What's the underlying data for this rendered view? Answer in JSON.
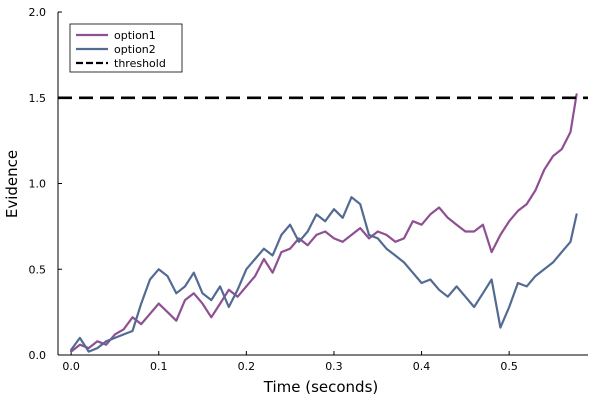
{
  "chart_data": {
    "type": "line",
    "xlabel": "Time (seconds)",
    "ylabel": "Evidence",
    "xlim": [
      -0.015,
      0.59
    ],
    "ylim": [
      0,
      2.0
    ],
    "xticks": [
      0.0,
      0.1,
      0.2,
      0.3,
      0.4,
      0.5
    ],
    "xtick_labels": [
      "0.0",
      "0.1",
      "0.2",
      "0.3",
      "0.4",
      "0.5"
    ],
    "yticks": [
      0.0,
      0.5,
      1.0,
      1.5,
      2.0
    ],
    "ytick_labels": [
      "0.0",
      "0.5",
      "1.0",
      "1.5",
      "2.0"
    ],
    "grid": false,
    "legend_position": "top-left",
    "series": [
      {
        "name": "option1",
        "color": "#8e5093",
        "x": [
          0.0,
          0.01,
          0.02,
          0.03,
          0.04,
          0.05,
          0.06,
          0.07,
          0.08,
          0.09,
          0.1,
          0.11,
          0.12,
          0.13,
          0.14,
          0.15,
          0.16,
          0.17,
          0.18,
          0.19,
          0.2,
          0.21,
          0.22,
          0.23,
          0.24,
          0.25,
          0.26,
          0.27,
          0.28,
          0.29,
          0.3,
          0.31,
          0.32,
          0.33,
          0.34,
          0.35,
          0.36,
          0.37,
          0.38,
          0.39,
          0.4,
          0.41,
          0.42,
          0.43,
          0.44,
          0.45,
          0.46,
          0.47,
          0.48,
          0.49,
          0.5,
          0.51,
          0.52,
          0.53,
          0.54,
          0.55,
          0.56,
          0.57,
          0.577
        ],
        "y": [
          0.02,
          0.06,
          0.04,
          0.08,
          0.06,
          0.12,
          0.15,
          0.22,
          0.18,
          0.24,
          0.3,
          0.25,
          0.2,
          0.32,
          0.36,
          0.3,
          0.22,
          0.3,
          0.38,
          0.34,
          0.4,
          0.46,
          0.56,
          0.48,
          0.6,
          0.62,
          0.68,
          0.64,
          0.7,
          0.72,
          0.68,
          0.66,
          0.7,
          0.74,
          0.68,
          0.72,
          0.7,
          0.66,
          0.68,
          0.78,
          0.76,
          0.82,
          0.86,
          0.8,
          0.76,
          0.72,
          0.72,
          0.76,
          0.6,
          0.7,
          0.78,
          0.84,
          0.88,
          0.96,
          1.08,
          1.16,
          1.2,
          1.3,
          1.52
        ]
      },
      {
        "name": "option2",
        "color": "#536b93",
        "x": [
          0.0,
          0.01,
          0.02,
          0.03,
          0.04,
          0.05,
          0.06,
          0.07,
          0.08,
          0.09,
          0.1,
          0.11,
          0.12,
          0.13,
          0.14,
          0.15,
          0.16,
          0.17,
          0.18,
          0.19,
          0.2,
          0.21,
          0.22,
          0.23,
          0.24,
          0.25,
          0.26,
          0.27,
          0.28,
          0.29,
          0.3,
          0.31,
          0.32,
          0.33,
          0.34,
          0.35,
          0.36,
          0.37,
          0.38,
          0.39,
          0.4,
          0.41,
          0.42,
          0.43,
          0.44,
          0.45,
          0.46,
          0.47,
          0.48,
          0.49,
          0.5,
          0.51,
          0.52,
          0.53,
          0.54,
          0.55,
          0.56,
          0.57,
          0.577
        ],
        "y": [
          0.03,
          0.1,
          0.02,
          0.04,
          0.08,
          0.1,
          0.12,
          0.14,
          0.3,
          0.44,
          0.5,
          0.46,
          0.36,
          0.4,
          0.48,
          0.36,
          0.32,
          0.4,
          0.28,
          0.38,
          0.5,
          0.56,
          0.62,
          0.58,
          0.7,
          0.76,
          0.66,
          0.72,
          0.82,
          0.78,
          0.85,
          0.8,
          0.92,
          0.88,
          0.7,
          0.68,
          0.62,
          0.58,
          0.54,
          0.48,
          0.42,
          0.44,
          0.38,
          0.34,
          0.4,
          0.34,
          0.28,
          0.36,
          0.44,
          0.16,
          0.28,
          0.42,
          0.4,
          0.46,
          0.5,
          0.54,
          0.6,
          0.66,
          0.82
        ]
      },
      {
        "name": "threshold",
        "color": "#000000",
        "dashed": true,
        "x": [
          -0.015,
          0.59
        ],
        "y": [
          1.5,
          1.5
        ]
      }
    ]
  }
}
